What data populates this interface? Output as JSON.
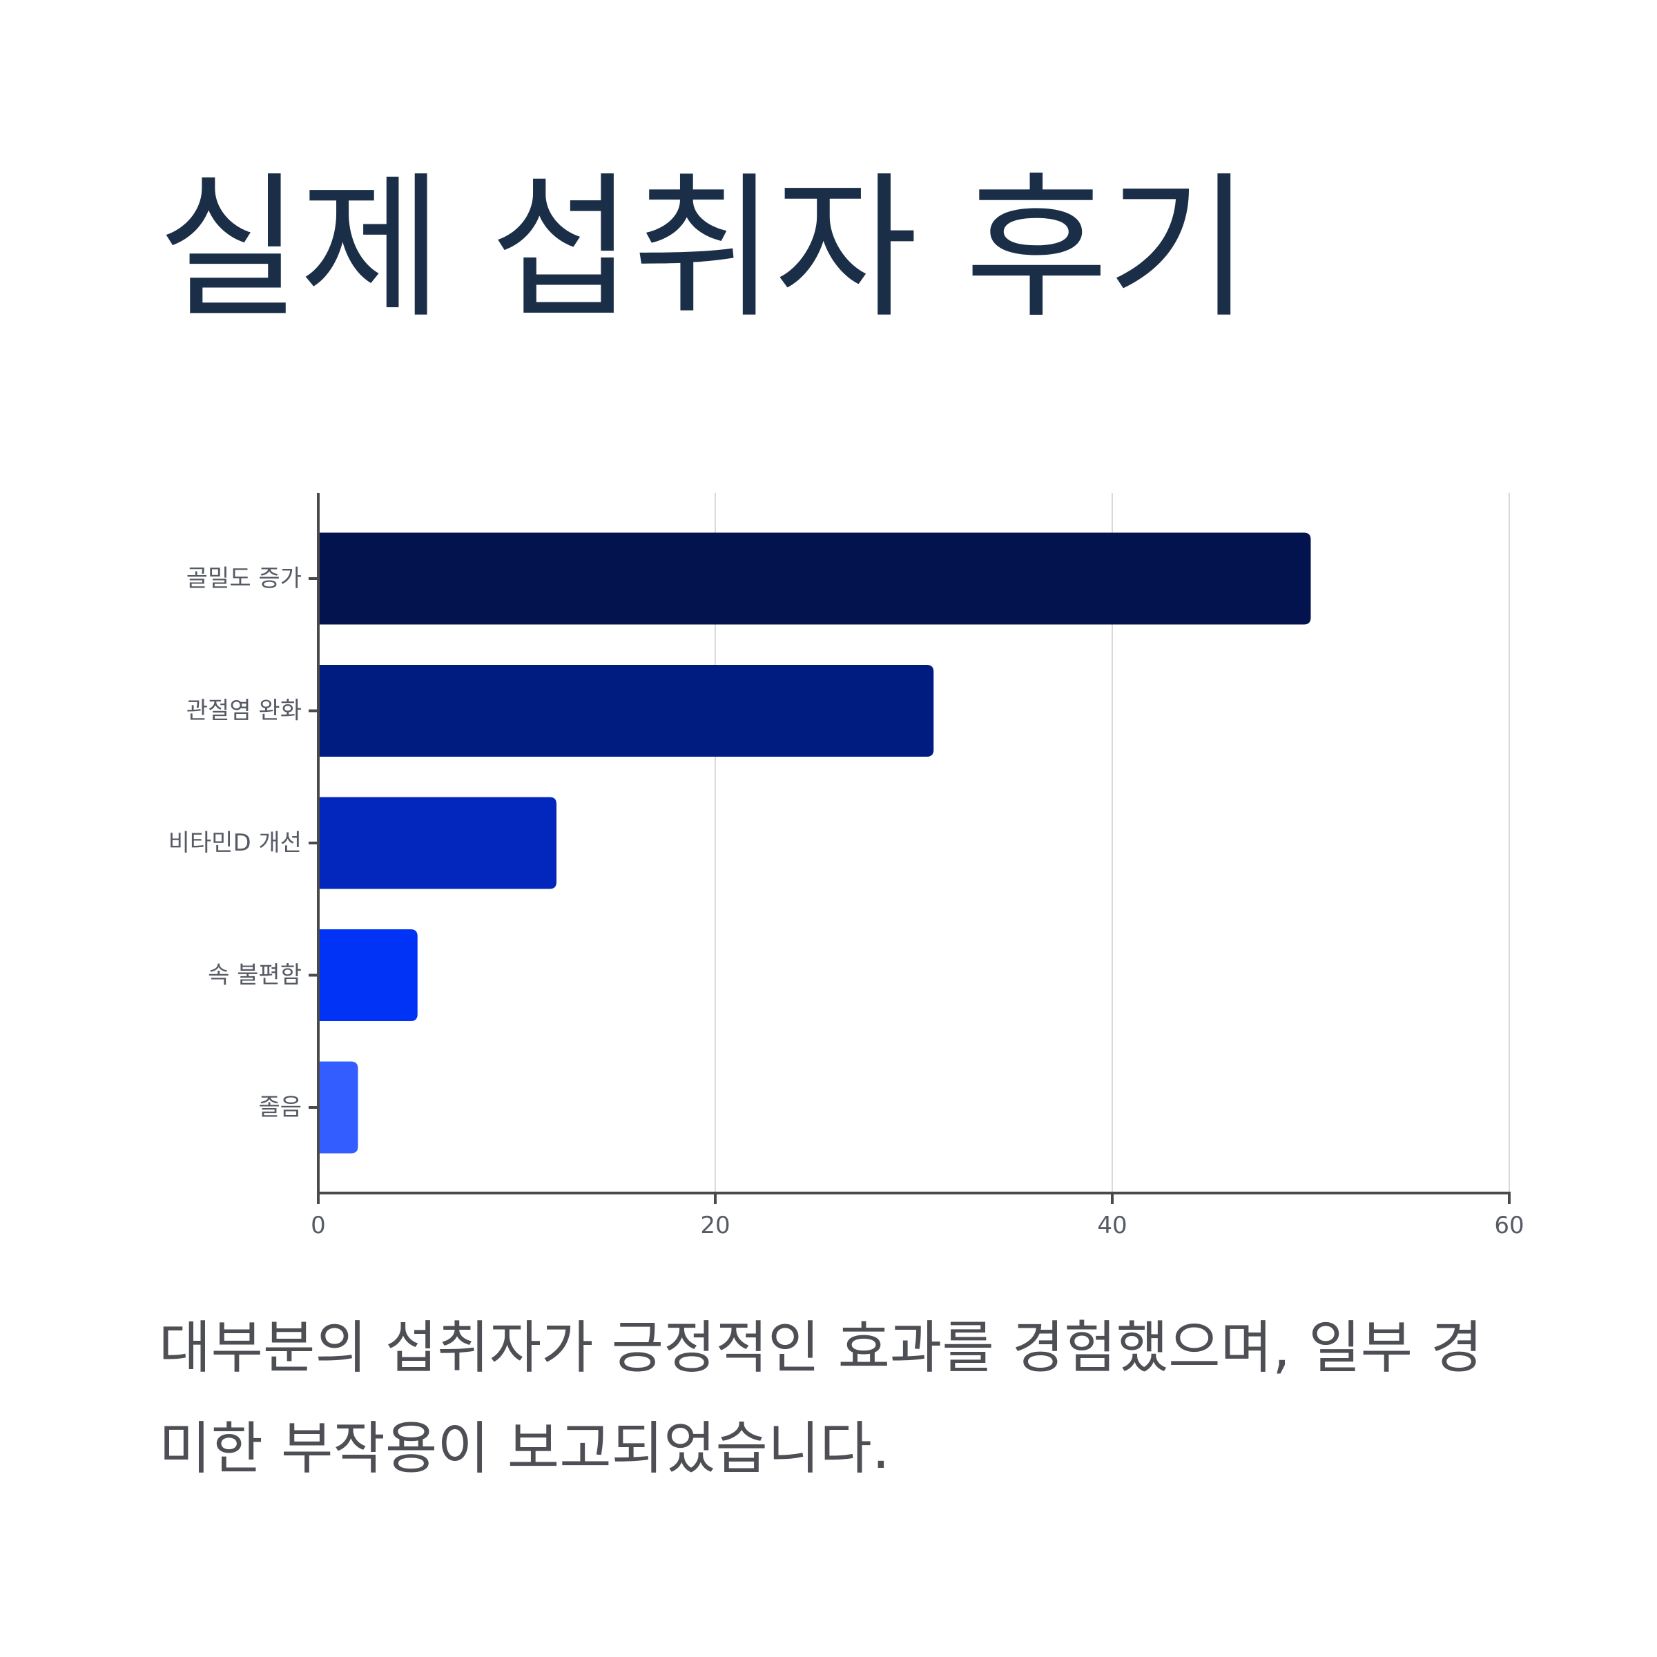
{
  "title": "실제 섭취자 후기",
  "description": "대부분의 섭취자가 긍정적인 효과를 경험했으며, 일부 경미한 부작용이 보고되었습니다.",
  "chart_data": {
    "type": "bar",
    "orientation": "horizontal",
    "categories": [
      "골밀도 증가",
      "관절염 완화",
      "비타민D 개선",
      "속 불편함",
      "졸음"
    ],
    "values": [
      50,
      31,
      12,
      5,
      2
    ],
    "colors": [
      "#02134d",
      "#001c80",
      "#0327bd",
      "#0033f5",
      "#335dff"
    ],
    "xlim": [
      0,
      60
    ],
    "xticks": [
      0,
      20,
      40,
      60
    ],
    "xlabel": "",
    "ylabel": "",
    "grid": "vertical",
    "legend": "none"
  }
}
